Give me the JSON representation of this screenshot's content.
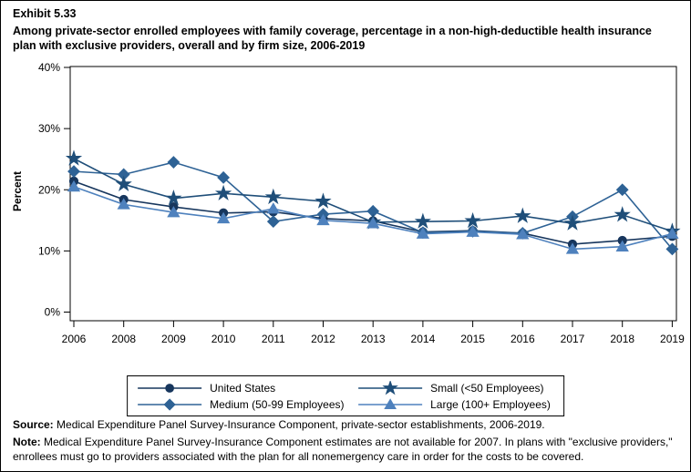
{
  "exhibit_label": "Exhibit 5.33",
  "title": "Among private-sector enrolled employees with family coverage, percentage in a non-high-deductible health insurance plan with exclusive providers, overall and by firm size, 2006-2019",
  "footer": {
    "source_label": "Source:",
    "source_text": " Medical Expenditure Panel Survey-Insurance Component, private-sector establishments, 2006-2019.",
    "note_label": "Note:",
    "note_text": " Medical Expenditure Panel Survey-Insurance Component estimates are not available for 2007. In plans with \"exclusive providers,\" enrollees must go to providers associated with the plan for all nonemergency care in order for the costs to be covered."
  },
  "chart_data": {
    "type": "line",
    "title": "Percentage in a non-high-deductible health insurance plan with exclusive providers, overall and by firm size, 2006-2019",
    "xlabel": "",
    "ylabel": "Percent",
    "ylim": [
      0,
      40
    ],
    "yticks": [
      0,
      10,
      20,
      30,
      40
    ],
    "ytick_labels": [
      "0%",
      "10%",
      "20%",
      "30%",
      "40%"
    ],
    "grid": false,
    "legend_position": "bottom",
    "categories": [
      "2006",
      "2008",
      "2009",
      "2010",
      "2011",
      "2012",
      "2013",
      "2014",
      "2015",
      "2016",
      "2017",
      "2018",
      "2019"
    ],
    "series": [
      {
        "name": "United States",
        "marker": "circle",
        "color": "#17365D",
        "values": [
          21.4,
          18.4,
          17.2,
          16.2,
          16.4,
          15.3,
          14.9,
          13.1,
          13.3,
          12.9,
          11.1,
          11.7,
          12.4
        ]
      },
      {
        "name": "Medium (50-99 Employees)",
        "marker": "diamond",
        "color": "#2E6295",
        "values": [
          23.0,
          22.5,
          24.5,
          22.0,
          14.8,
          16.0,
          16.5,
          13.0,
          13.2,
          12.9,
          15.6,
          20.0,
          10.3
        ]
      },
      {
        "name": "Small (<50 Employees)",
        "marker": "star",
        "color": "#1F4E79",
        "values": [
          25.1,
          20.9,
          18.6,
          19.4,
          18.8,
          18.1,
          14.7,
          14.8,
          14.9,
          15.7,
          14.5,
          15.9,
          13.2
        ]
      },
      {
        "name": "Large (100+ Employees)",
        "marker": "triangle",
        "color": "#4E81BD",
        "values": [
          20.5,
          17.6,
          16.3,
          15.3,
          16.9,
          15.0,
          14.5,
          12.8,
          13.1,
          12.7,
          10.3,
          10.7,
          12.8
        ]
      }
    ]
  }
}
